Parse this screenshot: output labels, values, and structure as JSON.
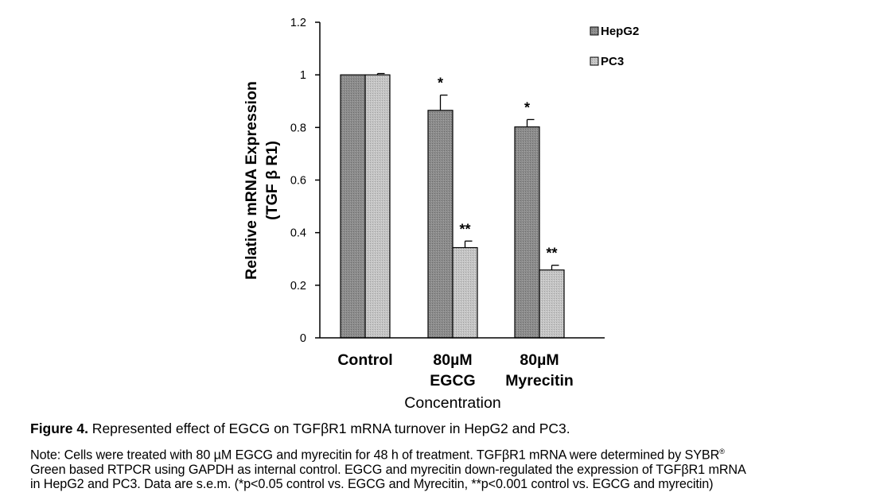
{
  "chart_data": {
    "type": "bar",
    "categories": [
      [
        "Control"
      ],
      [
        "80µM",
        "EGCG"
      ],
      [
        "80µM",
        "Myrecitin"
      ]
    ],
    "series": [
      {
        "name": "HepG2",
        "values": [
          1.0,
          0.865,
          0.802
        ],
        "errors": [
          0.0,
          0.058,
          0.028
        ],
        "color": "#8a8a8a"
      },
      {
        "name": "PC3",
        "values": [
          1.0,
          0.343,
          0.258
        ],
        "errors": [
          0.005,
          0.025,
          0.018
        ],
        "color": "#bdbdbd"
      }
    ],
    "annotations": [
      {
        "category": 1,
        "series": 0,
        "text": "*"
      },
      {
        "category": 2,
        "series": 0,
        "text": "*"
      },
      {
        "category": 1,
        "series": 1,
        "text": "**"
      },
      {
        "category": 2,
        "series": 1,
        "text": "**"
      }
    ],
    "ylabel_lines": [
      "Relative mRNA Expression",
      "(TGF β R1)"
    ],
    "xlabel": "Concentration",
    "ylim": [
      0,
      1.2
    ],
    "yticks": [
      "0",
      "0.2",
      "0.4",
      "0.6",
      "0.8",
      "1",
      "1.2"
    ],
    "ytick_values": [
      0,
      0.2,
      0.4,
      0.6,
      0.8,
      1.0,
      1.2
    ],
    "grid": false,
    "legend_position": "top-right"
  },
  "figure": {
    "label": "Figure 4.",
    "title": " Represented effect of EGCG on TGFβR1 mRNA turnover in HepG2 and PC3.",
    "note_line1_before_sup": "Note: Cells were treated with 80 µM EGCG and myrecitin for 48 h of treatment. TGFβR1 mRNA were determined by SYBR",
    "note_registered": "®",
    "note_line2": "Green based RTPCR using GAPDH as internal control. EGCG and myrecitin down-regulated the expression of TGFβR1 mRNA",
    "note_line3": "in HepG2 and PC3. Data are s.e.m. (*p<0.05 control vs. EGCG and Myrecitin, **p<0.001 control vs. EGCG and myrecitin)"
  }
}
